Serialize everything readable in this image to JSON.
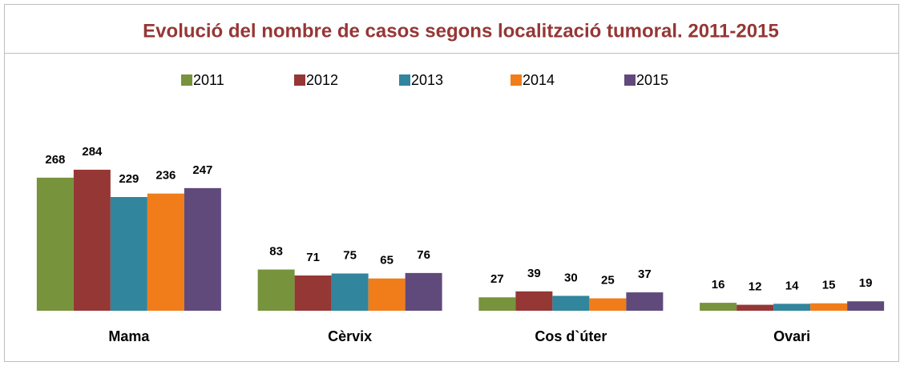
{
  "chart_data": {
    "type": "bar",
    "title": "Evolució del nombre de casos segons localització tumoral. 2011-2015",
    "categories": [
      "Mama",
      "Cèrvix",
      "Cos d`úter",
      "Ovari"
    ],
    "series": [
      {
        "name": "2011",
        "color": "#77933c",
        "values": [
          268,
          83,
          27,
          16
        ]
      },
      {
        "name": "2012",
        "color": "#953735",
        "values": [
          284,
          71,
          39,
          12
        ]
      },
      {
        "name": "2013",
        "color": "#31859c",
        "values": [
          229,
          75,
          30,
          14
        ]
      },
      {
        "name": "2014",
        "color": "#f07d1a",
        "values": [
          236,
          65,
          25,
          15
        ]
      },
      {
        "name": "2015",
        "color": "#604a7b",
        "values": [
          247,
          76,
          37,
          19
        ]
      }
    ],
    "ylim": [
      0,
      300
    ],
    "legend": "top"
  }
}
